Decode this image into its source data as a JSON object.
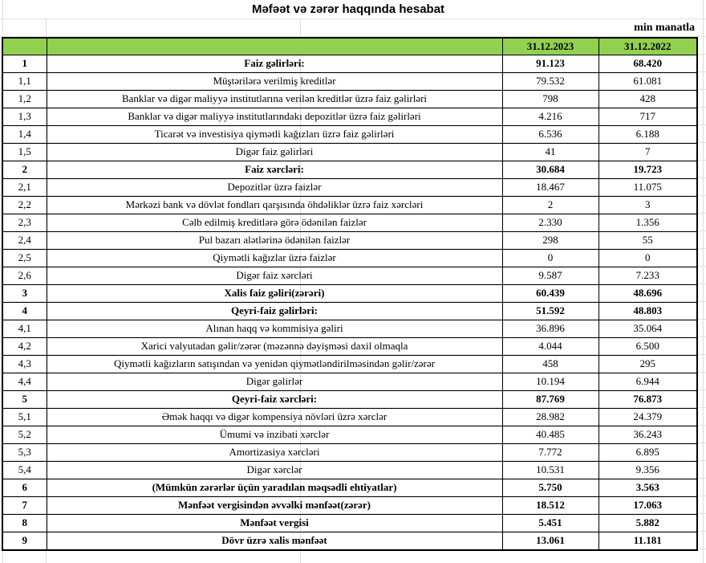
{
  "colors": {
    "header_green": "#92D050",
    "table_border": "#000000",
    "gridline": "#dcdcdc"
  },
  "header": {
    "title": "Məfəət və zərər haqqında hesabat",
    "unit_note": "min manatla",
    "columns": [
      "31.12.2023",
      "31.12.2022"
    ]
  },
  "rows": [
    {
      "no": "1",
      "label": "Faiz gəlirləri:",
      "v2023": "91.123",
      "v2022": "68.420",
      "bold": true
    },
    {
      "no": "1,1",
      "label": "Müştərilərə verilmiş kreditlər",
      "v2023": "79.532",
      "v2022": "61.081",
      "bold": false
    },
    {
      "no": "1,2",
      "label": "Banklar və digər maliyyə institutlarına verilən kreditlər üzrə faiz gəlirləri",
      "v2023": "798",
      "v2022": "428",
      "bold": false
    },
    {
      "no": "1,3",
      "label": "Banklar və digər maliyyə institutlarındakı depozitlər üzrə faiz gəlirləri",
      "v2023": "4.216",
      "v2022": "717",
      "bold": false
    },
    {
      "no": "1,4",
      "label": "Ticarət və investisiya qiymətli kağızları üzrə faiz gəlirləri",
      "v2023": "6.536",
      "v2022": "6.188",
      "bold": false
    },
    {
      "no": "1,5",
      "label": "Digər faiz gəlirləri",
      "v2023": "41",
      "v2022": "7",
      "bold": false
    },
    {
      "no": "2",
      "label": "Faiz xərcləri:",
      "v2023": "30.684",
      "v2022": "19.723",
      "bold": true
    },
    {
      "no": "2,1",
      "label": "Depozitlər üzrə faizlər",
      "v2023": "18.467",
      "v2022": "11.075",
      "bold": false
    },
    {
      "no": "2,2",
      "label": "Mərkəzi bank və dövlət fondları qarşısında öhdəliklər üzrə faiz xərcləri",
      "v2023": "2",
      "v2022": "3",
      "bold": false
    },
    {
      "no": "2,3",
      "label": "Cəlb edilmiş kreditlərə görə ödənilən faizlər",
      "v2023": "2.330",
      "v2022": "1.356",
      "bold": false
    },
    {
      "no": "2,4",
      "label": "Pul bazarı alətlərinə ödənilən faizlər",
      "v2023": "298",
      "v2022": "55",
      "bold": false
    },
    {
      "no": "2,5",
      "label": "Qiymətli kağızlar üzrə faizlər",
      "v2023": "0",
      "v2022": "0",
      "bold": false
    },
    {
      "no": "2,6",
      "label": "Digər faiz xərcləri",
      "v2023": "9.587",
      "v2022": "7.233",
      "bold": false
    },
    {
      "no": "3",
      "label": "Xalis faiz gəliri(zərəri)",
      "v2023": "60.439",
      "v2022": "48.696",
      "bold": true
    },
    {
      "no": "4",
      "label": "Qeyri-faiz gəlirləri:",
      "v2023": "51.592",
      "v2022": "48.803",
      "bold": true
    },
    {
      "no": "4,1",
      "label": "Alınan haqq və kommisiya gəliri",
      "v2023": "36.896",
      "v2022": "35.064",
      "bold": false
    },
    {
      "no": "4,2",
      "label": "Xarici valyutadan gəlir/zərər (məzənnə dəyişməsi daxil olmaqla",
      "v2023": "4.044",
      "v2022": "6.500",
      "bold": false
    },
    {
      "no": "4,3",
      "label": "Qiymətli kağızların satışından və yenidən qiymətləndirilməsindən gəlir/zərər",
      "v2023": "458",
      "v2022": "295",
      "bold": false
    },
    {
      "no": "4,4",
      "label": "Digər gəlirlər",
      "v2023": "10.194",
      "v2022": "6.944",
      "bold": false
    },
    {
      "no": "5",
      "label": "Qeyri-faiz xərcləri:",
      "v2023": "87.769",
      "v2022": "76.873",
      "bold": true
    },
    {
      "no": "5,1",
      "label": "Əmək haqqı və digər kompensiya növləri üzrə xərclər",
      "v2023": "28.982",
      "v2022": "24.379",
      "bold": false
    },
    {
      "no": "5,2",
      "label": "Ümumi və inzibati xərclər",
      "v2023": "40.485",
      "v2022": "36.243",
      "bold": false
    },
    {
      "no": "5,3",
      "label": "Amortizasiya xərcləri",
      "v2023": "7.772",
      "v2022": "6.895",
      "bold": false
    },
    {
      "no": "5,4",
      "label": "Digər xərclər",
      "v2023": "10.531",
      "v2022": "9.356",
      "bold": false
    },
    {
      "no": "6",
      "label": "(Mümkün zərərlər üçün yaradılan məqsədli ehtiyatlar)",
      "v2023": "5.750",
      "v2022": "3.563",
      "bold": true
    },
    {
      "no": "7",
      "label": "Mənfəət vergisindən əvvəlki mənfəət(zərər)",
      "v2023": "18.512",
      "v2022": "17.063",
      "bold": true
    },
    {
      "no": "8",
      "label": "Mənfəət vergisi",
      "v2023": "5.451",
      "v2022": "5.882",
      "bold": true
    },
    {
      "no": "9",
      "label": "Dövr üzrə xalis mənfəət",
      "v2023": "13.061",
      "v2022": "11.181",
      "bold": true
    }
  ]
}
